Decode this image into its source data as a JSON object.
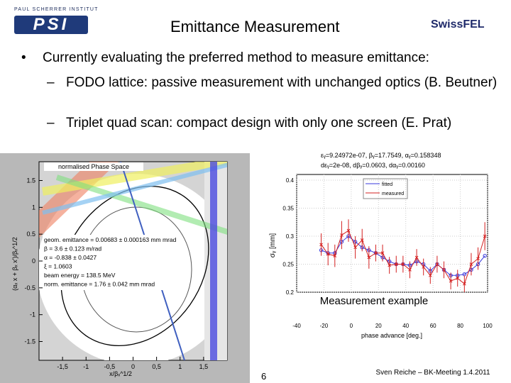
{
  "header": {
    "institute": "PAUL SCHERRER INSTITUT",
    "logo": "PSI",
    "title": "Emittance Measurement",
    "brand": "SwissFEL"
  },
  "bullets": [
    {
      "text": "Currently evaluating the preferred method to measure emittance:",
      "subitems": [
        "FODO lattice: passive measurement with unchanged optics (B. Beutner)",
        "Triplet quad scan: compact design with only one screen (E. Prat)"
      ]
    }
  ],
  "left_plot": {
    "title": "normalised Phase Space",
    "xlabel": "x/βₓ^1/2",
    "ylabel": "(αₓ x + βₓ x')/βₓ^1/2",
    "xlim": [
      -2,
      2
    ],
    "ylim": [
      -1.85,
      1.85
    ],
    "xticks": [
      {
        "value": -1.5,
        "label": "-1,5"
      },
      -1,
      {
        "value": -0.5,
        "label": "-0,5"
      },
      0,
      {
        "value": 0.5,
        "label": "0,5"
      },
      1,
      {
        "value": 1.5,
        "label": "1,5"
      }
    ],
    "yticks": [
      1.5,
      1,
      0.5,
      0,
      -0.5,
      -1,
      -1.5
    ],
    "annotations": [
      "geom. emittance = 0.00683 ± 0.000163 mm mrad",
      "β = 3.6 ± 0.123 m/rad",
      "α = -0.838 ± 0.0427",
      "ξ = 1.0603",
      "beam energy = 138.5 MeV",
      "norm. emittance = 1.76 ± 0.042 mm mrad"
    ]
  },
  "right_plot": {
    "fit_lines": [
      "εᵧ=9.24972e-07, βᵧ=17.7549, αᵧ=0.158348",
      "dεᵧ=2e-08, dβᵧ=0.0603, dαᵧ=0.00160"
    ],
    "xlabel": "phase advance [deg.]",
    "ylabel": "σᵧ [mm]",
    "caption": "Measurement example",
    "xlim": [
      -40,
      100
    ],
    "ylim": [
      0.2,
      0.4
    ],
    "xticks": [
      -40,
      -20,
      0,
      20,
      40,
      60,
      80,
      100
    ],
    "yticks": [
      0.4,
      0.35,
      0.3,
      0.25,
      0.2
    ],
    "x": [
      -22,
      -17,
      -12,
      -7,
      -2,
      3,
      8,
      13,
      18,
      23,
      28,
      33,
      38,
      43,
      48,
      53,
      58,
      63,
      68,
      73,
      78,
      83,
      88,
      93,
      98
    ],
    "series": [
      {
        "name": "fitted",
        "color": "#3a3adc",
        "values": [
          0.275,
          0.27,
          0.27,
          0.29,
          0.3,
          0.29,
          0.28,
          0.275,
          0.27,
          0.262,
          0.255,
          0.25,
          0.25,
          0.248,
          0.255,
          0.25,
          0.238,
          0.25,
          0.24,
          0.23,
          0.23,
          0.232,
          0.24,
          0.25,
          0.265
        ]
      },
      {
        "name": "measured",
        "color": "#d42020",
        "values": [
          0.285,
          0.268,
          0.265,
          0.302,
          0.31,
          0.28,
          0.293,
          0.262,
          0.27,
          0.27,
          0.248,
          0.25,
          0.25,
          0.24,
          0.262,
          0.245,
          0.23,
          0.25,
          0.24,
          0.22,
          0.225,
          0.215,
          0.25,
          0.26,
          0.3
        ],
        "errors": [
          0.02,
          0.02,
          0.02,
          0.025,
          0.02,
          0.02,
          0.02,
          0.02,
          0.015,
          0.015,
          0.015,
          0.015,
          0.015,
          0.015,
          0.015,
          0.015,
          0.015,
          0.015,
          0.015,
          0.015,
          0.015,
          0.015,
          0.02,
          0.02,
          0.025
        ]
      }
    ]
  },
  "footer": {
    "page": "6",
    "author": "Sven Reiche – BK-Meeting 1.4.2011"
  }
}
